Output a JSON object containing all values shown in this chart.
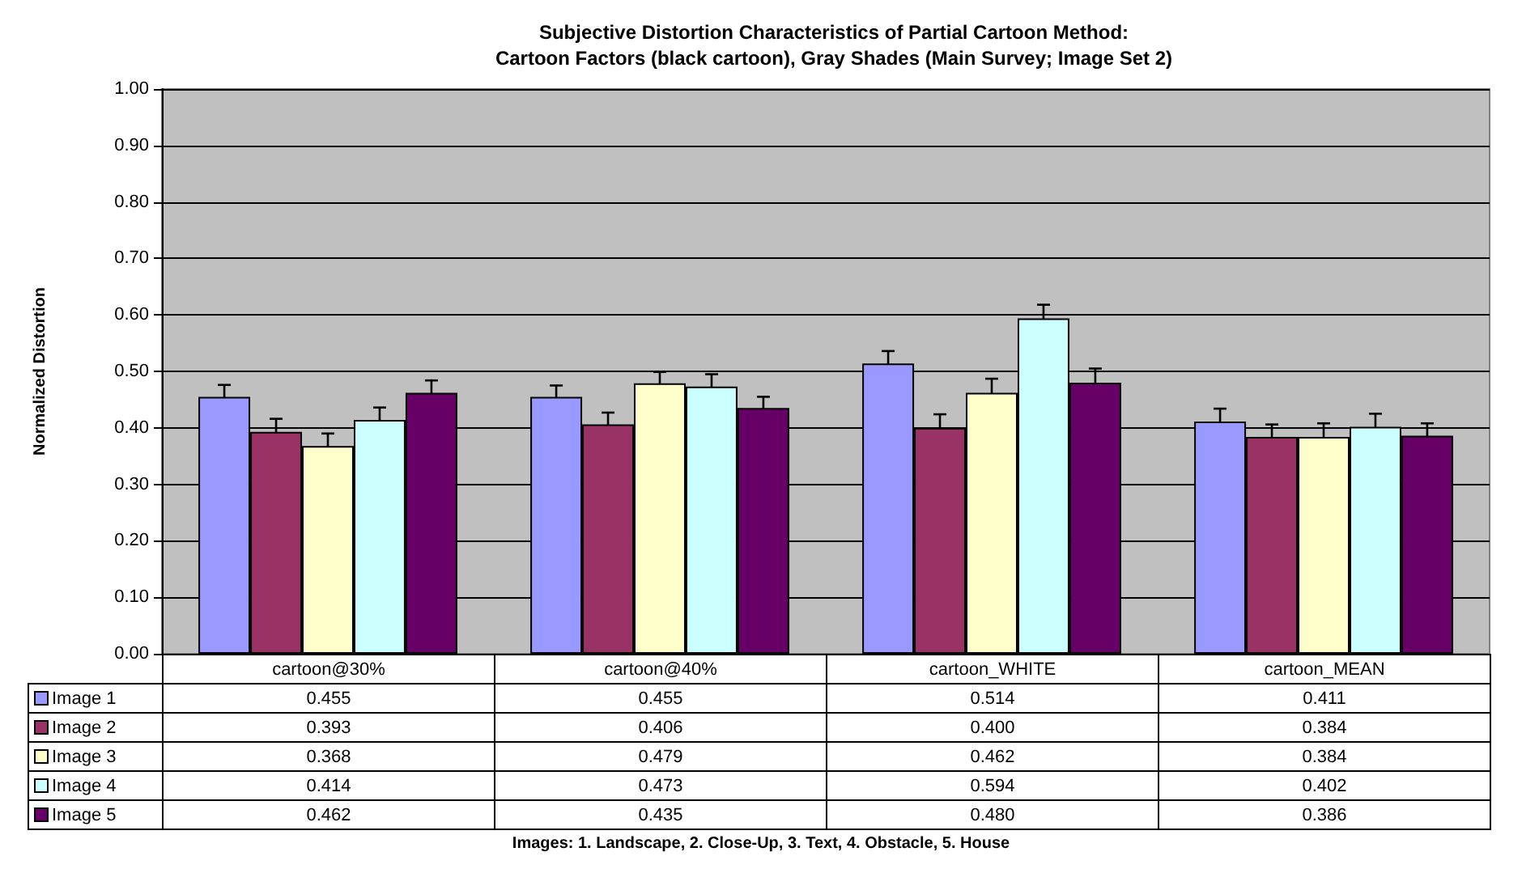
{
  "chart_data": {
    "type": "bar",
    "title": "Subjective Distortion Characteristics of Partial Cartoon Method:\nCartoon Factors (black cartoon), Gray Shades (Main Survey; Image Set 2)",
    "ylabel": "Normalized Distortion",
    "categories": [
      "cartoon@30%",
      "cartoon@40%",
      "cartoon_WHITE",
      "cartoon_MEAN"
    ],
    "series": [
      {
        "name": "Image 1",
        "color": "#9999ff",
        "values": [
          0.455,
          0.455,
          0.514,
          0.411
        ],
        "value_labels": [
          "0.455",
          "0.455",
          "0.514",
          "0.411"
        ],
        "errors": [
          0.021,
          0.02,
          0.022,
          0.023
        ]
      },
      {
        "name": "Image 2",
        "color": "#993366",
        "values": [
          0.393,
          0.406,
          0.4,
          0.384
        ],
        "value_labels": [
          "0.393",
          "0.406",
          "0.400",
          "0.384"
        ],
        "errors": [
          0.023,
          0.021,
          0.024,
          0.022
        ]
      },
      {
        "name": "Image 3",
        "color": "#ffffcc",
        "values": [
          0.368,
          0.479,
          0.462,
          0.384
        ],
        "value_labels": [
          "0.368",
          "0.479",
          "0.462",
          "0.384"
        ],
        "errors": [
          0.022,
          0.02,
          0.025,
          0.024
        ]
      },
      {
        "name": "Image 4",
        "color": "#ccffff",
        "values": [
          0.414,
          0.473,
          0.594,
          0.402
        ],
        "value_labels": [
          "0.414",
          "0.473",
          "0.594",
          "0.402"
        ],
        "errors": [
          0.022,
          0.022,
          0.024,
          0.023
        ]
      },
      {
        "name": "Image 5",
        "color": "#660066",
        "values": [
          0.462,
          0.435,
          0.48,
          0.386
        ],
        "value_labels": [
          "0.462",
          "0.435",
          "0.480",
          "0.386"
        ],
        "errors": [
          0.022,
          0.02,
          0.025,
          0.022
        ]
      }
    ],
    "ylim": [
      0,
      1
    ],
    "yticks": [
      {
        "value": 0,
        "label": "0.00"
      },
      {
        "value": 0.1,
        "label": "0.10"
      },
      {
        "value": 0.2,
        "label": "0.20"
      },
      {
        "value": 0.3,
        "label": "0.30"
      },
      {
        "value": 0.4,
        "label": "0.40"
      },
      {
        "value": 0.5,
        "label": "0.50"
      },
      {
        "value": 0.6,
        "label": "0.60"
      },
      {
        "value": 0.7,
        "label": "0.70"
      },
      {
        "value": 0.8,
        "label": "0.80"
      },
      {
        "value": 0.9,
        "label": "0.90"
      },
      {
        "value": 1,
        "label": "1.00"
      }
    ],
    "grid": "y",
    "legend": "bottom left",
    "annotations": [
      "Images: 1. Landscape, 2. Close-Up, 3. Text, 4. Obstacle, 5. House"
    ]
  }
}
